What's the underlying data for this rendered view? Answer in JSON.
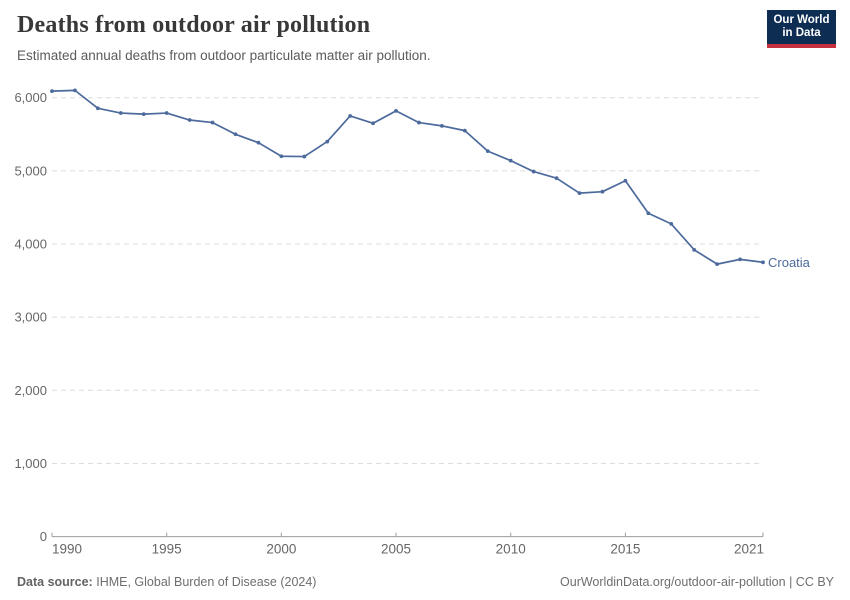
{
  "header": {
    "title": "Deaths from outdoor air pollution",
    "subtitle": "Estimated annual deaths from outdoor particulate matter air pollution.",
    "logo": {
      "line1": "Our World",
      "line2": "in Data"
    }
  },
  "chart_data": {
    "type": "line",
    "title": "Deaths from outdoor air pollution",
    "xlabel": "",
    "ylabel": "",
    "xlim": [
      1990,
      2021
    ],
    "ylim": [
      0,
      6000
    ],
    "grid": "horizontal-dashed",
    "legend_position": "end-of-line-label",
    "x_ticks": {
      "values": [
        1990,
        1995,
        2000,
        2005,
        2010,
        2015,
        2021
      ],
      "labels": [
        "1990",
        "1995",
        "2000",
        "2005",
        "2010",
        "2015",
        "2021"
      ]
    },
    "y_ticks": {
      "values": [
        0,
        1000,
        2000,
        3000,
        4000,
        5000,
        6000
      ],
      "labels": [
        "0",
        "1,000",
        "2,000",
        "3,000",
        "4,000",
        "5,000",
        "6,000"
      ]
    },
    "series": [
      {
        "name": "Croatia",
        "color": "#4C6A9C",
        "x": [
          1990,
          1991,
          1992,
          1993,
          1994,
          1995,
          1996,
          1997,
          1998,
          1999,
          2000,
          2001,
          2002,
          2003,
          2004,
          2005,
          2006,
          2007,
          2008,
          2009,
          2010,
          2011,
          2012,
          2013,
          2014,
          2015,
          2016,
          2017,
          2018,
          2019,
          2020,
          2021
        ],
        "values": [
          6090,
          6100,
          5855,
          5790,
          5775,
          5790,
          5695,
          5660,
          5500,
          5385,
          5200,
          5195,
          5400,
          5750,
          5650,
          5820,
          5660,
          5615,
          5550,
          5270,
          5140,
          4990,
          4900,
          4695,
          4715,
          4865,
          4420,
          4275,
          3920,
          3725,
          3790,
          3750
        ]
      }
    ],
    "end_label": "Croatia"
  },
  "footer": {
    "datasource_label": "Data source:",
    "datasource_value": "IHME, Global Burden of Disease (2024)",
    "link": "OurWorldinData.org/outdoor-air-pollution",
    "separator": " | ",
    "license": "CC BY"
  },
  "colors": {
    "line": "#4C6A9C",
    "grid": "#dcdcdc",
    "axis": "#9d9d9d",
    "tick_text": "#666666",
    "logo_bg": "#0d2e52",
    "logo_accent": "#c5303e"
  }
}
